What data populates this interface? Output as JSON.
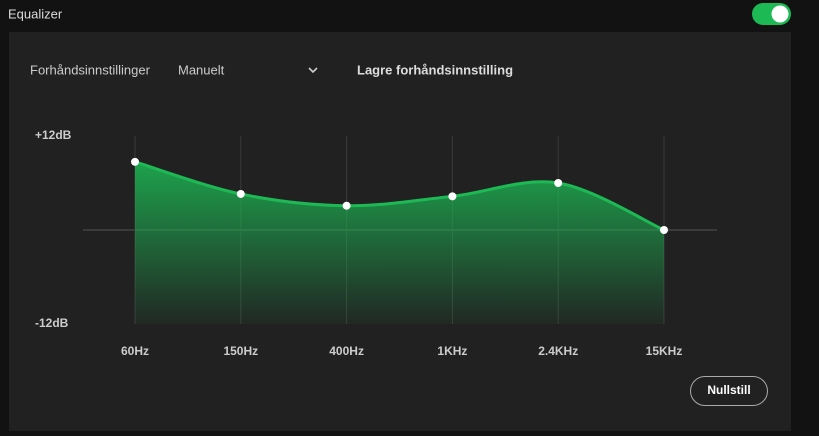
{
  "header": {
    "title": "Equalizer"
  },
  "presets": {
    "label": "Forhåndsinnstillinger",
    "value": "Manuelt",
    "save": "Lagre forhåndsinnstilling"
  },
  "reset": "Nullstill",
  "chart_data": {
    "type": "line",
    "categories": [
      "60Hz",
      "150Hz",
      "400Hz",
      "1KHz",
      "2.4KHz",
      "15KHz"
    ],
    "values": [
      8.7,
      4.6,
      3.1,
      4.3,
      6.0,
      0
    ],
    "color": "#1db954",
    "ylim": [
      -12,
      12
    ],
    "yticks": [
      {
        "value": 12,
        "label": "+12dB"
      },
      {
        "value": -12,
        "label": "-12dB"
      }
    ],
    "grid": true
  }
}
